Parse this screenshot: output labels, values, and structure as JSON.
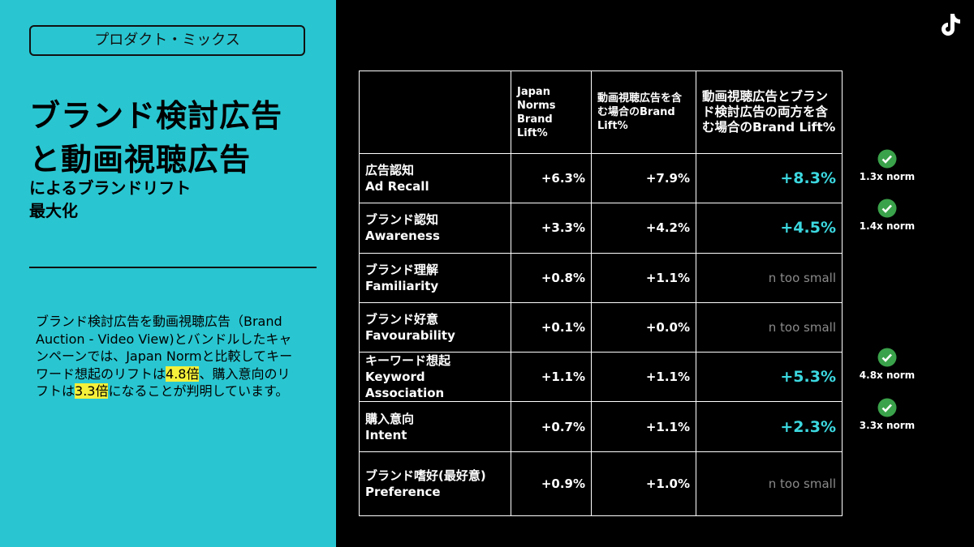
{
  "tag": "プロダクト・ミックス",
  "title": [
    "ブランド検討広告",
    "と動画視聴広告"
  ],
  "subtitle": [
    "によるブランドリフト",
    "最大化"
  ],
  "body": [
    "ブランド検討広告を動画視聴広告（Brand Auction - Video View)とバンドルしたキャンペーンでは、Japan Normと比較してキーワード想起のリフトは",
    "4.8倍",
    "、購入意向のリフトは",
    "3.3倍",
    "になることが判明しています。"
  ],
  "table": {
    "headers": [
      "Japan Norms Brand Lift%",
      "動画視聴広告を含む場合のBrand Lift%",
      "動画視聴広告とブランド検討広告の両方を含む場合のBrand Lift%"
    ],
    "rows": [
      {
        "ja": "広告認知",
        "en": "Ad Recall",
        "values": [
          "+6.3%",
          "+7.9%",
          "+8.3%"
        ],
        "norm": "1.3x norm"
      },
      {
        "ja": "ブランド認知",
        "en": "Awareness",
        "values": [
          "+3.3%",
          "+4.2%",
          "+4.5%"
        ],
        "norm": "1.4x norm"
      },
      {
        "ja": "ブランド理解",
        "en": "Familiarity",
        "values": [
          "+0.8%",
          "+1.1%",
          "n too small"
        ]
      },
      {
        "ja": "ブランド好意",
        "en": "Favourability",
        "values": [
          "+0.1%",
          "+0.0%",
          "n too small"
        ]
      },
      {
        "ja": "キーワード想起",
        "en": "Keyword Association",
        "values": [
          "+1.1%",
          "+1.1%",
          "+5.3%"
        ],
        "norm": "4.8x norm"
      },
      {
        "ja": "購入意向",
        "en": "Intent",
        "values": [
          "+0.7%",
          "+1.1%",
          "+2.3%"
        ],
        "norm": "3.3x norm"
      },
      {
        "ja": "ブランド嗜好(最好意)",
        "en": "Preference",
        "values": [
          "+0.9%",
          "+1.0%",
          "n too small"
        ]
      }
    ]
  }
}
